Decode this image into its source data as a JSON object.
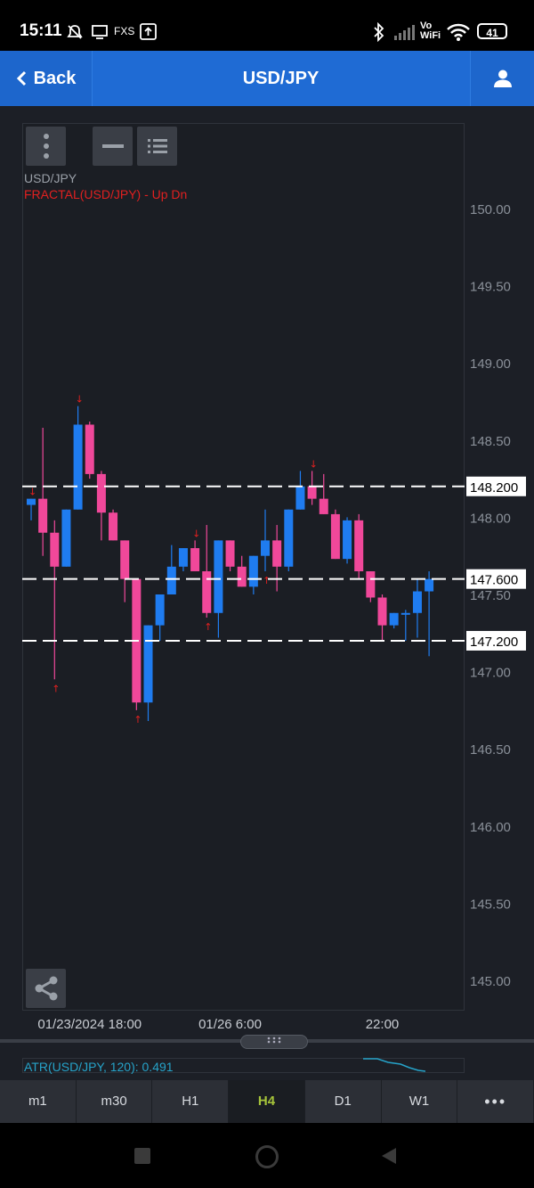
{
  "status_bar": {
    "time": "15:11",
    "carrier": "FXS",
    "battery": "41",
    "vowifi_top": "Vo",
    "vowifi_bottom": "WiFi"
  },
  "header": {
    "back_label": "Back",
    "title": "USD/JPY"
  },
  "chart_labels": {
    "symbol": "USD/JPY",
    "indicator": "FRACTAL(USD/JPY) - Up Dn"
  },
  "colors": {
    "up": "#1f7cf0",
    "down": "#f0489a",
    "fractal": "#e02020",
    "indicator": "#26a3c9",
    "active_tab": "#a6c43a"
  },
  "chart_data": {
    "type": "candlestick",
    "symbol": "USD/JPY",
    "timeframe": "H4",
    "y_ticks": [
      "150.00",
      "149.50",
      "149.00",
      "148.50",
      "148.00",
      "147.50",
      "147.00",
      "146.50",
      "146.00",
      "145.50",
      "145.00"
    ],
    "ylim": [
      144.75,
      150.3
    ],
    "x_labels": [
      "01/23/2024 18:00",
      "01/26 6:00",
      "22:00"
    ],
    "x_label_index": [
      5,
      17,
      30
    ],
    "horizontal_lines": [
      {
        "value": 148.2,
        "label": "148.200"
      },
      {
        "value": 147.6,
        "label": "147.600"
      },
      {
        "value": 147.2,
        "label": "147.200"
      }
    ],
    "candles": [
      {
        "o": 148.08,
        "h": 148.12,
        "l": 147.98,
        "c": 148.12
      },
      {
        "o": 148.12,
        "h": 148.58,
        "l": 147.75,
        "c": 147.9
      },
      {
        "o": 147.9,
        "h": 147.98,
        "l": 146.95,
        "c": 147.68
      },
      {
        "o": 147.68,
        "h": 148.05,
        "l": 147.68,
        "c": 148.05
      },
      {
        "o": 148.05,
        "h": 148.72,
        "l": 148.05,
        "c": 148.6
      },
      {
        "o": 148.6,
        "h": 148.62,
        "l": 148.25,
        "c": 148.28
      },
      {
        "o": 148.28,
        "h": 148.3,
        "l": 147.85,
        "c": 148.03
      },
      {
        "o": 148.03,
        "h": 148.05,
        "l": 147.85,
        "c": 147.85
      },
      {
        "o": 147.85,
        "h": 147.85,
        "l": 147.45,
        "c": 147.6
      },
      {
        "o": 147.6,
        "h": 147.6,
        "l": 146.75,
        "c": 146.8
      },
      {
        "o": 146.8,
        "h": 147.3,
        "l": 146.68,
        "c": 147.3
      },
      {
        "o": 147.3,
        "h": 147.5,
        "l": 147.2,
        "c": 147.5
      },
      {
        "o": 147.5,
        "h": 147.82,
        "l": 147.5,
        "c": 147.68
      },
      {
        "o": 147.68,
        "h": 147.8,
        "l": 147.65,
        "c": 147.8
      },
      {
        "o": 147.8,
        "h": 147.85,
        "l": 147.65,
        "c": 147.65
      },
      {
        "o": 147.65,
        "h": 147.95,
        "l": 147.35,
        "c": 147.38
      },
      {
        "o": 147.38,
        "h": 147.85,
        "l": 147.22,
        "c": 147.85
      },
      {
        "o": 147.85,
        "h": 147.85,
        "l": 147.65,
        "c": 147.68
      },
      {
        "o": 147.68,
        "h": 147.75,
        "l": 147.55,
        "c": 147.55
      },
      {
        "o": 147.55,
        "h": 147.75,
        "l": 147.5,
        "c": 147.75
      },
      {
        "o": 147.75,
        "h": 148.05,
        "l": 147.65,
        "c": 147.85
      },
      {
        "o": 147.85,
        "h": 147.95,
        "l": 147.52,
        "c": 147.68
      },
      {
        "o": 147.68,
        "h": 148.05,
        "l": 147.65,
        "c": 148.05
      },
      {
        "o": 148.05,
        "h": 148.3,
        "l": 148.05,
        "c": 148.2
      },
      {
        "o": 148.2,
        "h": 148.3,
        "l": 148.08,
        "c": 148.12
      },
      {
        "o": 148.12,
        "h": 148.28,
        "l": 148.02,
        "c": 148.02
      },
      {
        "o": 148.02,
        "h": 148.05,
        "l": 147.73,
        "c": 147.73
      },
      {
        "o": 147.73,
        "h": 148.0,
        "l": 147.7,
        "c": 147.98
      },
      {
        "o": 147.98,
        "h": 148.02,
        "l": 147.6,
        "c": 147.65
      },
      {
        "o": 147.65,
        "h": 147.65,
        "l": 147.45,
        "c": 147.48
      },
      {
        "o": 147.48,
        "h": 147.5,
        "l": 147.2,
        "c": 147.3
      },
      {
        "o": 147.3,
        "h": 147.38,
        "l": 147.28,
        "c": 147.38
      },
      {
        "o": 147.38,
        "h": 147.4,
        "l": 147.2,
        "c": 147.38
      },
      {
        "o": 147.38,
        "h": 147.6,
        "l": 147.22,
        "c": 147.52
      },
      {
        "o": 147.52,
        "h": 147.65,
        "l": 147.1,
        "c": 147.6
      }
    ],
    "fractals_down": [
      0,
      4,
      14,
      24
    ],
    "fractals_up": [
      2,
      9,
      15,
      20
    ],
    "indicator": {
      "label": "ATR(USD/JPY, 120): 0.491"
    }
  },
  "tabs": [
    {
      "label": "m1",
      "active": false
    },
    {
      "label": "m30",
      "active": false
    },
    {
      "label": "H1",
      "active": false
    },
    {
      "label": "H4",
      "active": true
    },
    {
      "label": "D1",
      "active": false
    },
    {
      "label": "W1",
      "active": false
    },
    {
      "label": "•••",
      "active": false
    }
  ]
}
